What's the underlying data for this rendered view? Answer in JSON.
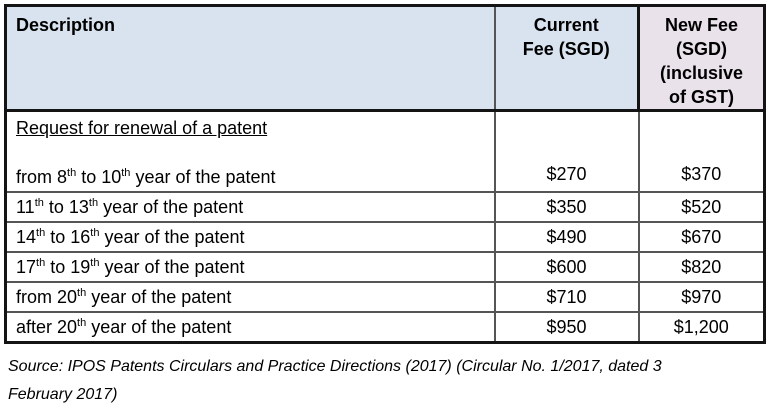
{
  "colors": {
    "header_blue": "#d9e3f0",
    "header_pink": "#eae2ea",
    "border_dark": "#141414",
    "border_gray": "#555555",
    "text": "#000000"
  },
  "table": {
    "header": {
      "description": "Description",
      "current_fee": "Current\nFee (SGD)",
      "new_fee": "New Fee\n(SGD)\n(inclusive\nof GST)"
    },
    "rows": [
      {
        "group_heading": "Request for renewal of a patent",
        "label": "from 8^th^ to 10^th^ year of the patent",
        "current_fee": "$270",
        "new_fee": "$370"
      },
      {
        "label": "11^th^ to 13^th^ year of the patent",
        "current_fee": "$350",
        "new_fee": "$520"
      },
      {
        "label": "14^th^ to 16^th^ year of the patent",
        "current_fee": "$490",
        "new_fee": "$670"
      },
      {
        "label": "17^th^ to 19^th^ year of the patent",
        "current_fee": "$600",
        "new_fee": "$820"
      },
      {
        "label": "from 20^th^ year of the patent",
        "current_fee": "$710",
        "new_fee": "$970"
      },
      {
        "label": "after 20^th^ year of the patent",
        "current_fee": "$950",
        "new_fee": "$1,200"
      }
    ]
  },
  "source": {
    "text": "Source: IPOS Patents Circulars and Practice Directions (2017) (Circular No. 1/2017, dated 3\nFebruary 2017)"
  }
}
